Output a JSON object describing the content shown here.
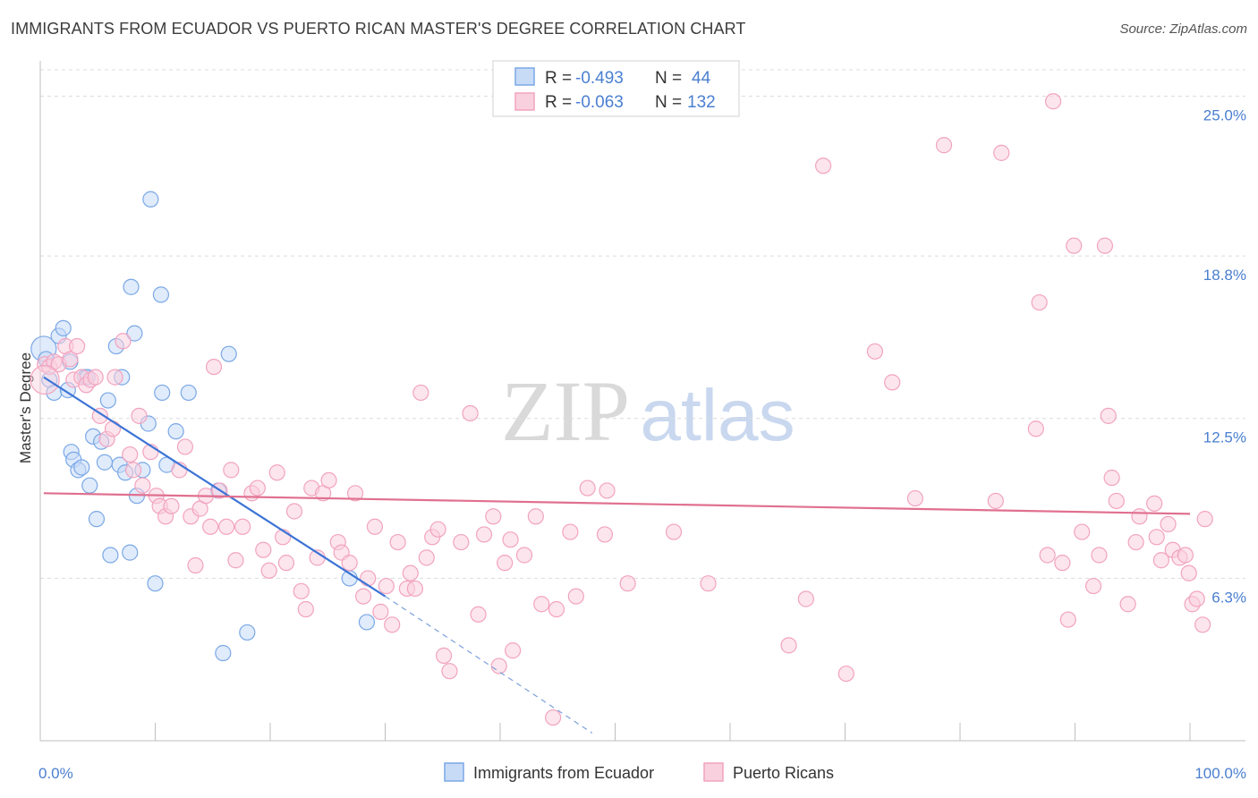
{
  "title": "IMMIGRANTS FROM ECUADOR VS PUERTO RICAN MASTER'S DEGREE CORRELATION CHART",
  "source": "Source: ZipAtlas.com",
  "watermark": {
    "zip": "ZIP",
    "atlas": "atlas"
  },
  "chart_data": {
    "type": "scatter",
    "ylabel": "Master's Degree",
    "xlim": [
      0,
      100
    ],
    "ylim": [
      0,
      26.3
    ],
    "x_tick_labels": [
      "0.0%",
      "100.0%"
    ],
    "y_ticks": [
      6.3,
      12.5,
      18.8,
      25.0
    ],
    "y_tick_labels": [
      "6.3%",
      "12.5%",
      "18.8%",
      "25.0%"
    ],
    "grid": "horizontal-dashed",
    "legend_placement": "top-center",
    "series": [
      {
        "name": "Immigrants from Ecuador",
        "color": "#7aa8e6",
        "stat_r_label": "R =",
        "stat_r_value": "-0.493",
        "stat_n_label": "N =",
        "stat_n_value": "44",
        "trend": {
          "x0": 0.3,
          "y0": 14.1,
          "x1": 30,
          "y1": 5.6,
          "dash_to_x": 48,
          "dash_to_y": 0.3
        },
        "points": [
          [
            0.3,
            15.2
          ],
          [
            0.5,
            14.8
          ],
          [
            0.8,
            14.0
          ],
          [
            1.2,
            13.5
          ],
          [
            1.6,
            15.7
          ],
          [
            2.0,
            16.0
          ],
          [
            2.4,
            13.6
          ],
          [
            2.6,
            14.7
          ],
          [
            2.7,
            11.2
          ],
          [
            2.9,
            10.9
          ],
          [
            3.3,
            10.5
          ],
          [
            3.6,
            10.6
          ],
          [
            3.9,
            14.1
          ],
          [
            4.1,
            14.1
          ],
          [
            4.3,
            9.9
          ],
          [
            4.6,
            11.8
          ],
          [
            4.9,
            8.6
          ],
          [
            5.3,
            11.6
          ],
          [
            5.6,
            10.8
          ],
          [
            5.9,
            13.2
          ],
          [
            6.1,
            7.2
          ],
          [
            6.6,
            15.3
          ],
          [
            6.9,
            10.7
          ],
          [
            7.1,
            14.1
          ],
          [
            7.4,
            10.4
          ],
          [
            7.8,
            7.3
          ],
          [
            7.9,
            17.6
          ],
          [
            8.2,
            15.8
          ],
          [
            8.4,
            9.5
          ],
          [
            8.9,
            10.5
          ],
          [
            9.4,
            12.3
          ],
          [
            9.6,
            21.0
          ],
          [
            10.0,
            6.1
          ],
          [
            10.5,
            17.3
          ],
          [
            10.6,
            13.5
          ],
          [
            11.0,
            10.7
          ],
          [
            11.8,
            12.0
          ],
          [
            12.9,
            13.5
          ],
          [
            15.5,
            9.7
          ],
          [
            15.9,
            3.4
          ],
          [
            16.4,
            15.0
          ],
          [
            18.0,
            4.2
          ],
          [
            26.9,
            6.3
          ],
          [
            28.4,
            4.6
          ]
        ]
      },
      {
        "name": "Puerto Ricans",
        "color": "#f2a3bf",
        "stat_r_label": "R =",
        "stat_r_value": "-0.063",
        "stat_n_label": "N =",
        "stat_n_value": "132",
        "trend": {
          "x0": 0.3,
          "y0": 9.6,
          "x1": 100,
          "y1": 8.8
        },
        "points": [
          [
            0.4,
            14.6
          ],
          [
            0.8,
            14.5
          ],
          [
            1.2,
            14.7
          ],
          [
            1.6,
            14.6
          ],
          [
            2.2,
            15.3
          ],
          [
            2.6,
            14.8
          ],
          [
            2.9,
            14.0
          ],
          [
            3.2,
            15.3
          ],
          [
            3.6,
            14.1
          ],
          [
            4.0,
            13.8
          ],
          [
            4.4,
            14.0
          ],
          [
            4.8,
            14.1
          ],
          [
            5.2,
            12.6
          ],
          [
            5.8,
            11.7
          ],
          [
            6.3,
            12.1
          ],
          [
            6.5,
            14.1
          ],
          [
            7.2,
            15.5
          ],
          [
            7.8,
            11.1
          ],
          [
            8.1,
            10.5
          ],
          [
            8.6,
            12.6
          ],
          [
            8.9,
            9.9
          ],
          [
            9.6,
            11.2
          ],
          [
            10.1,
            9.5
          ],
          [
            10.4,
            9.1
          ],
          [
            10.9,
            8.7
          ],
          [
            11.4,
            9.1
          ],
          [
            12.1,
            10.5
          ],
          [
            12.6,
            11.4
          ],
          [
            13.1,
            8.7
          ],
          [
            13.5,
            6.8
          ],
          [
            13.9,
            9.0
          ],
          [
            14.4,
            9.5
          ],
          [
            14.8,
            8.3
          ],
          [
            15.1,
            14.5
          ],
          [
            15.6,
            9.7
          ],
          [
            16.2,
            8.3
          ],
          [
            16.6,
            10.5
          ],
          [
            17.0,
            7.0
          ],
          [
            17.6,
            8.3
          ],
          [
            18.4,
            9.6
          ],
          [
            18.9,
            9.8
          ],
          [
            19.4,
            7.4
          ],
          [
            19.9,
            6.6
          ],
          [
            20.6,
            10.4
          ],
          [
            21.1,
            7.9
          ],
          [
            21.4,
            6.9
          ],
          [
            22.1,
            8.9
          ],
          [
            22.7,
            5.8
          ],
          [
            23.1,
            5.1
          ],
          [
            23.6,
            9.8
          ],
          [
            24.1,
            7.1
          ],
          [
            24.6,
            9.6
          ],
          [
            25.1,
            10.1
          ],
          [
            25.9,
            7.7
          ],
          [
            26.2,
            7.3
          ],
          [
            26.9,
            6.9
          ],
          [
            27.4,
            9.6
          ],
          [
            28.1,
            5.6
          ],
          [
            28.5,
            6.3
          ],
          [
            29.1,
            8.3
          ],
          [
            29.6,
            5.0
          ],
          [
            30.1,
            6.0
          ],
          [
            30.6,
            4.5
          ],
          [
            31.1,
            7.7
          ],
          [
            31.9,
            5.9
          ],
          [
            32.2,
            6.5
          ],
          [
            32.6,
            5.9
          ],
          [
            33.1,
            13.5
          ],
          [
            33.6,
            7.1
          ],
          [
            34.1,
            7.9
          ],
          [
            34.6,
            8.2
          ],
          [
            35.1,
            3.3
          ],
          [
            35.6,
            2.7
          ],
          [
            36.6,
            7.7
          ],
          [
            37.4,
            12.7
          ],
          [
            38.1,
            4.9
          ],
          [
            38.6,
            8.0
          ],
          [
            39.4,
            8.7
          ],
          [
            39.9,
            2.9
          ],
          [
            40.4,
            6.9
          ],
          [
            40.9,
            7.8
          ],
          [
            41.1,
            3.5
          ],
          [
            42.1,
            7.2
          ],
          [
            43.1,
            8.7
          ],
          [
            43.6,
            5.3
          ],
          [
            44.6,
            0.9
          ],
          [
            44.9,
            5.1
          ],
          [
            46.1,
            8.1
          ],
          [
            46.6,
            5.6
          ],
          [
            47.6,
            9.8
          ],
          [
            49.1,
            8.0
          ],
          [
            49.3,
            9.7
          ],
          [
            51.1,
            6.1
          ],
          [
            55.1,
            8.1
          ],
          [
            58.1,
            6.1
          ],
          [
            65.1,
            3.7
          ],
          [
            66.6,
            5.5
          ],
          [
            68.1,
            22.3
          ],
          [
            70.1,
            2.6
          ],
          [
            72.6,
            15.1
          ],
          [
            74.1,
            13.9
          ],
          [
            76.1,
            9.4
          ],
          [
            78.6,
            23.1
          ],
          [
            83.1,
            9.3
          ],
          [
            83.6,
            22.8
          ],
          [
            86.6,
            12.1
          ],
          [
            86.9,
            17.0
          ],
          [
            87.6,
            7.2
          ],
          [
            88.1,
            24.8
          ],
          [
            88.9,
            6.9
          ],
          [
            89.4,
            4.7
          ],
          [
            89.9,
            19.2
          ],
          [
            90.6,
            8.1
          ],
          [
            91.6,
            6.0
          ],
          [
            92.1,
            7.2
          ],
          [
            92.6,
            19.2
          ],
          [
            92.9,
            12.6
          ],
          [
            93.2,
            10.2
          ],
          [
            93.6,
            9.3
          ],
          [
            94.6,
            5.3
          ],
          [
            95.3,
            7.7
          ],
          [
            95.6,
            8.7
          ],
          [
            96.9,
            9.2
          ],
          [
            97.1,
            7.9
          ],
          [
            97.5,
            7.0
          ],
          [
            98.1,
            8.4
          ],
          [
            98.5,
            7.4
          ],
          [
            99.1,
            7.1
          ],
          [
            99.6,
            7.2
          ],
          [
            99.9,
            6.5
          ],
          [
            100.2,
            5.3
          ],
          [
            100.6,
            5.5
          ],
          [
            101.1,
            4.5
          ],
          [
            101.3,
            8.6
          ]
        ]
      }
    ]
  }
}
